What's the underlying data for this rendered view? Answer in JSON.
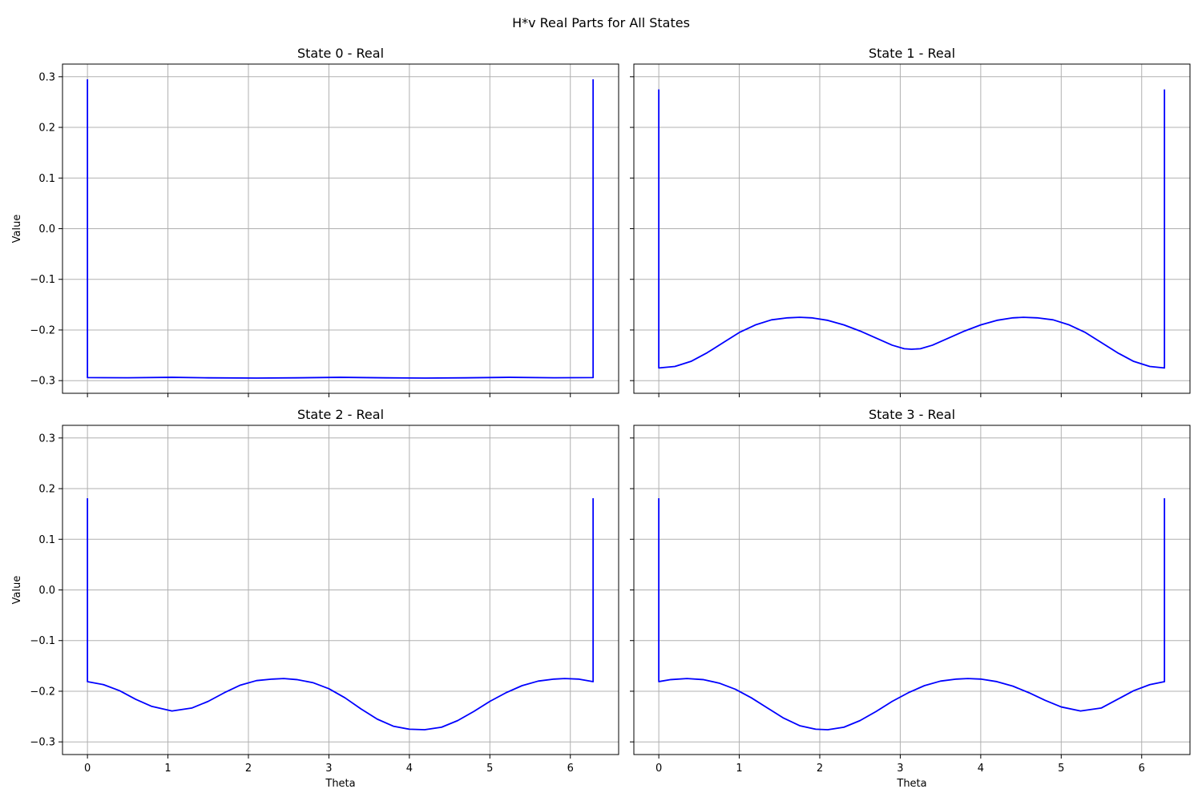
{
  "figure": {
    "title": "H*v Real Parts for All States"
  },
  "colors": {
    "line": "#0000ff",
    "grid": "#b0b0b0",
    "frame": "#000000"
  },
  "chart_data": [
    {
      "type": "line",
      "title": "State 0 - Real",
      "xlabel": "",
      "ylabel": "Value",
      "xlim": [
        -0.31,
        6.6
      ],
      "ylim": [
        -0.325,
        0.325
      ],
      "xticks": [
        0,
        1,
        2,
        3,
        4,
        5,
        6
      ],
      "yticks": [
        -0.3,
        -0.2,
        -0.1,
        0.0,
        0.1,
        0.2,
        0.3
      ],
      "grid": true,
      "series": [
        {
          "x": [
            0,
            0,
            0.5,
            1.05,
            1.5,
            2.1,
            2.6,
            3.14,
            3.7,
            4.2,
            4.7,
            5.24,
            5.8,
            6.283,
            6.283
          ],
          "y": [
            0.295,
            -0.294,
            -0.2943,
            -0.2935,
            -0.2945,
            -0.295,
            -0.2945,
            -0.2935,
            -0.2945,
            -0.295,
            -0.2945,
            -0.2935,
            -0.2943,
            -0.294,
            0.295
          ]
        }
      ]
    },
    {
      "type": "line",
      "title": "State 1 - Real",
      "xlabel": "",
      "ylabel": "",
      "xlim": [
        -0.31,
        6.6
      ],
      "ylim": [
        -0.325,
        0.325
      ],
      "xticks": [
        0,
        1,
        2,
        3,
        4,
        5,
        6
      ],
      "yticks": [
        -0.3,
        -0.2,
        -0.1,
        0.0,
        0.1,
        0.2,
        0.3
      ],
      "grid": true,
      "series": [
        {
          "x": [
            0,
            0,
            0.2,
            0.4,
            0.6,
            0.8,
            1.0,
            1.2,
            1.4,
            1.6,
            1.75,
            1.9,
            2.1,
            2.3,
            2.5,
            2.7,
            2.9,
            3.05,
            3.14,
            3.25,
            3.4,
            3.6,
            3.8,
            4.0,
            4.2,
            4.4,
            4.53,
            4.7,
            4.9,
            5.1,
            5.3,
            5.5,
            5.7,
            5.9,
            6.1,
            6.283,
            6.283
          ],
          "y": [
            0.275,
            -0.275,
            -0.272,
            -0.262,
            -0.245,
            -0.225,
            -0.205,
            -0.19,
            -0.18,
            -0.176,
            -0.175,
            -0.176,
            -0.181,
            -0.19,
            -0.202,
            -0.216,
            -0.23,
            -0.237,
            -0.238,
            -0.237,
            -0.23,
            -0.216,
            -0.202,
            -0.19,
            -0.181,
            -0.176,
            -0.175,
            -0.176,
            -0.18,
            -0.19,
            -0.205,
            -0.225,
            -0.245,
            -0.262,
            -0.272,
            -0.275,
            0.275
          ]
        }
      ]
    },
    {
      "type": "line",
      "title": "State 2 - Real",
      "xlabel": "Theta",
      "ylabel": "Value",
      "xlim": [
        -0.31,
        6.6
      ],
      "ylim": [
        -0.325,
        0.325
      ],
      "xticks": [
        0,
        1,
        2,
        3,
        4,
        5,
        6
      ],
      "yticks": [
        -0.3,
        -0.2,
        -0.1,
        0.0,
        0.1,
        0.2,
        0.3
      ],
      "grid": true,
      "series": [
        {
          "x": [
            0,
            0,
            0.2,
            0.4,
            0.6,
            0.8,
            1.05,
            1.3,
            1.5,
            1.7,
            1.9,
            2.1,
            2.3,
            2.44,
            2.6,
            2.8,
            3.0,
            3.2,
            3.4,
            3.6,
            3.8,
            4.0,
            4.19,
            4.4,
            4.6,
            4.8,
            5.0,
            5.2,
            5.4,
            5.6,
            5.8,
            5.93,
            6.1,
            6.283,
            6.283
          ],
          "y": [
            0.181,
            -0.181,
            -0.187,
            -0.199,
            -0.216,
            -0.23,
            -0.239,
            -0.233,
            -0.22,
            -0.203,
            -0.188,
            -0.179,
            -0.176,
            -0.175,
            -0.177,
            -0.183,
            -0.195,
            -0.213,
            -0.235,
            -0.255,
            -0.269,
            -0.275,
            -0.276,
            -0.271,
            -0.258,
            -0.24,
            -0.22,
            -0.203,
            -0.189,
            -0.18,
            -0.176,
            -0.175,
            -0.176,
            -0.181,
            0.181
          ]
        }
      ]
    },
    {
      "type": "line",
      "title": "State 3 - Real",
      "xlabel": "Theta",
      "ylabel": "",
      "xlim": [
        -0.31,
        6.6
      ],
      "ylim": [
        -0.325,
        0.325
      ],
      "xticks": [
        0,
        1,
        2,
        3,
        4,
        5,
        6
      ],
      "yticks": [
        -0.3,
        -0.2,
        -0.1,
        0.0,
        0.1,
        0.2,
        0.3
      ],
      "grid": true,
      "series": [
        {
          "x": [
            0,
            0,
            0.15,
            0.35,
            0.55,
            0.75,
            0.95,
            1.15,
            1.35,
            1.55,
            1.75,
            1.95,
            2.1,
            2.3,
            2.5,
            2.7,
            2.9,
            3.1,
            3.3,
            3.5,
            3.7,
            3.84,
            4.0,
            4.2,
            4.4,
            4.6,
            4.8,
            5.0,
            5.24,
            5.5,
            5.7,
            5.9,
            6.1,
            6.283,
            6.283
          ],
          "y": [
            0.181,
            -0.181,
            -0.177,
            -0.175,
            -0.177,
            -0.184,
            -0.196,
            -0.213,
            -0.233,
            -0.253,
            -0.268,
            -0.275,
            -0.276,
            -0.271,
            -0.258,
            -0.24,
            -0.22,
            -0.203,
            -0.189,
            -0.18,
            -0.176,
            -0.175,
            -0.176,
            -0.181,
            -0.19,
            -0.203,
            -0.218,
            -0.231,
            -0.239,
            -0.233,
            -0.216,
            -0.199,
            -0.187,
            -0.181,
            0.181
          ]
        }
      ]
    }
  ]
}
